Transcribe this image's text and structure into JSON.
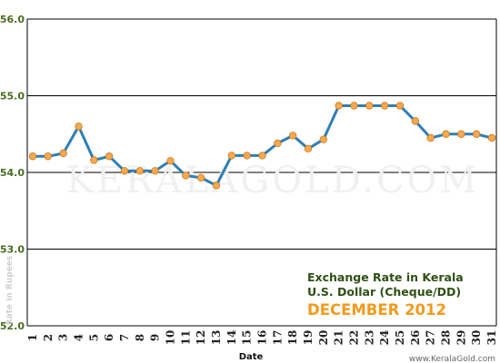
{
  "chart_data": {
    "type": "line",
    "title_line1": "Exchange Rate in Kerala",
    "title_line2": "U.S. Dollar (Cheque/DD)",
    "title_line3": "DECEMBER 2012",
    "xlabel": "Date",
    "ylabel": "Rate in Rupees",
    "ylim": [
      52.0,
      56.0
    ],
    "yticks": [
      "56.0",
      "55.0",
      "54.0",
      "53.0",
      "52.0"
    ],
    "x": [
      "1",
      "2",
      "3",
      "4",
      "5",
      "6",
      "7",
      "8",
      "9",
      "10",
      "11",
      "12",
      "13",
      "14",
      "15",
      "16",
      "17",
      "18",
      "19",
      "20",
      "21",
      "22",
      "23",
      "24",
      "25",
      "26",
      "27",
      "28",
      "29",
      "30",
      "31"
    ],
    "values": [
      54.21,
      54.21,
      54.25,
      54.6,
      54.16,
      54.21,
      54.02,
      54.02,
      54.02,
      54.15,
      53.96,
      53.93,
      53.83,
      54.22,
      54.22,
      54.22,
      54.38,
      54.48,
      54.31,
      54.43,
      54.87,
      54.87,
      54.87,
      54.87,
      54.87,
      54.67,
      54.45,
      54.5,
      54.5,
      54.5,
      54.45
    ],
    "grid": true,
    "line_color": "#2f7fb5",
    "marker_color": "#f6a94e",
    "watermark": "KERALAGOLD.COM",
    "credit": "www.KeralaGold.com"
  }
}
